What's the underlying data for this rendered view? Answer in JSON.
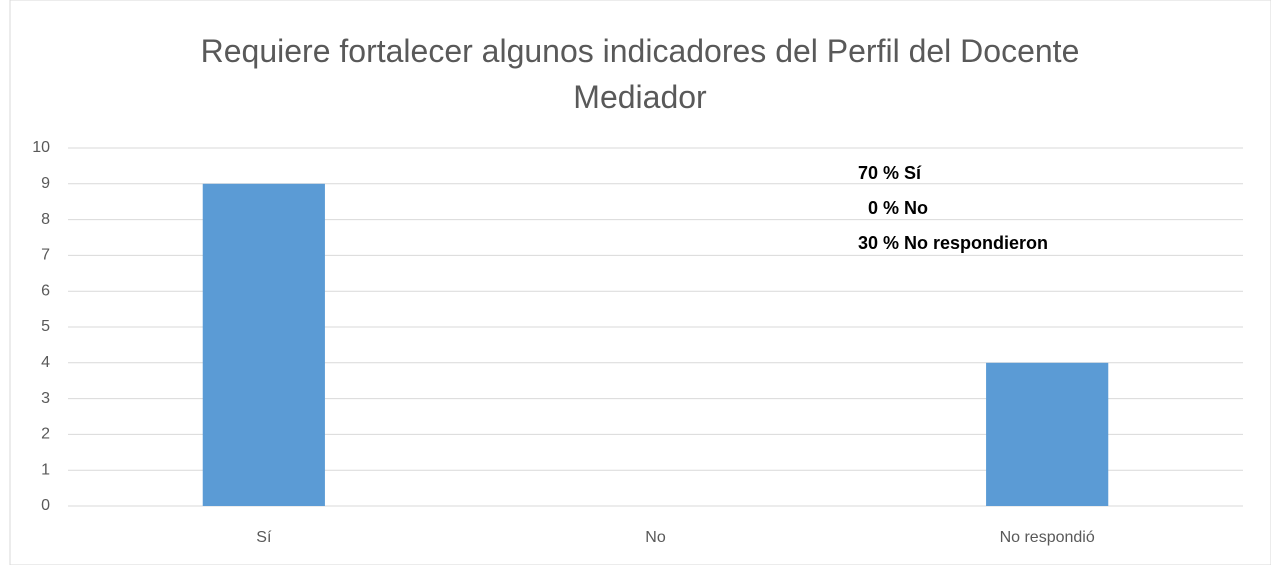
{
  "chart_data": {
    "type": "bar",
    "title": "Requiere fortalecer algunos indicadores del Perfil del Docente Mediador",
    "categories": [
      "Sí",
      "No",
      "No respondió"
    ],
    "values": [
      9,
      0,
      4
    ],
    "color": "#5b9bd5",
    "ylim": [
      0,
      10
    ],
    "yticks": [
      0,
      1,
      2,
      3,
      4,
      5,
      6,
      7,
      8,
      9,
      10
    ],
    "grid": true,
    "annotations": [
      "70 % Sí",
      "0 % No",
      "30 % No respondieron"
    ]
  }
}
